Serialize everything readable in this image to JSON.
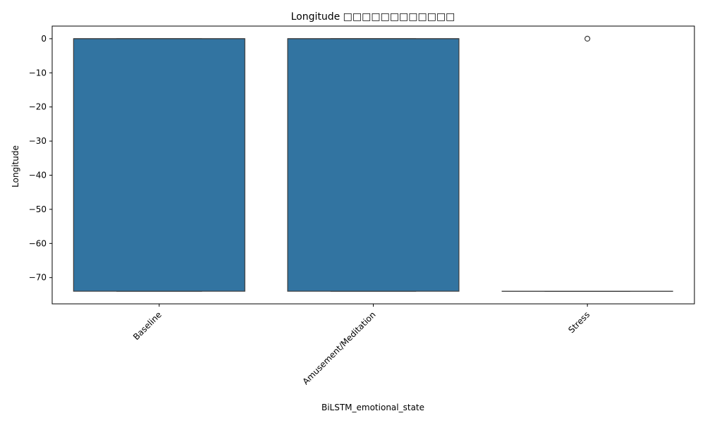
{
  "chart_data": {
    "type": "box",
    "title": "Longitude □□□□□□□□□□□□",
    "xlabel": "BiLSTM_emotional_state",
    "ylabel": "Longitude",
    "categories": [
      "Baseline",
      "Amusement/Meditation",
      "Stress"
    ],
    "boxes": [
      {
        "category": "Baseline",
        "q1": -74,
        "median": 0,
        "q3": 0,
        "whisker_low": -74,
        "whisker_high": 0,
        "outliers": []
      },
      {
        "category": "Amusement/Meditation",
        "q1": -74,
        "median": 0,
        "q3": 0,
        "whisker_low": -74,
        "whisker_high": 0,
        "outliers": []
      },
      {
        "category": "Stress",
        "q1": -74,
        "median": -74,
        "q3": -74,
        "whisker_low": -74,
        "whisker_high": -74,
        "outliers": [
          0
        ]
      }
    ],
    "yticks": [
      0,
      -10,
      -20,
      -30,
      -40,
      -50,
      -60,
      -70
    ],
    "ytick_labels": [
      "0",
      "−10",
      "−20",
      "−30",
      "−40",
      "−50",
      "−60",
      "−70"
    ],
    "ylim": [
      -77.7,
      3.7
    ],
    "grid": false,
    "colors": {
      "box_fill": "#3274a1",
      "box_edge": "#3d3d3d",
      "axis": "#000000"
    }
  }
}
